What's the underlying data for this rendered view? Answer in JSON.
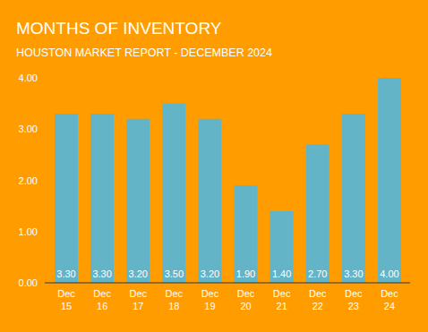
{
  "chart_data": {
    "type": "bar",
    "title": "MONTHS OF INVENTORY",
    "subtitle": "HOUSTON MARKET REPORT - DECEMBER 2024",
    "categories": [
      "Dec 15",
      "Dec 16",
      "Dec 17",
      "Dec 18",
      "Dec 19",
      "Dec 20",
      "Dec 21",
      "Dec 22",
      "Dec 23",
      "Dec 24"
    ],
    "values": [
      3.3,
      3.3,
      3.2,
      3.5,
      3.2,
      1.9,
      1.4,
      2.7,
      3.3,
      4.0
    ],
    "value_labels": [
      "3.30",
      "3.30",
      "3.20",
      "3.50",
      "3.20",
      "1.90",
      "1.40",
      "2.70",
      "3.30",
      "4.00"
    ],
    "color": "#64b4c8",
    "ylim": [
      0,
      4
    ],
    "yticks": [
      {
        "value": 0,
        "label": "0.00"
      },
      {
        "value": 1,
        "label": "1.00"
      },
      {
        "value": 2,
        "label": "2.00"
      },
      {
        "value": 3,
        "label": "3.00"
      },
      {
        "value": 4,
        "label": "4.00"
      }
    ],
    "grid": false,
    "data_labels": true
  }
}
